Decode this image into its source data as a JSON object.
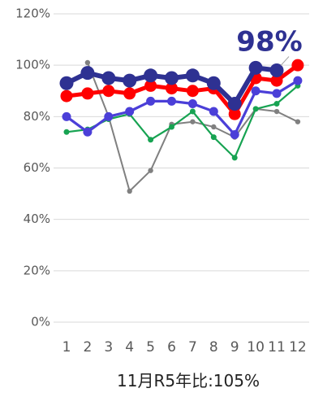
{
  "chart_data": {
    "type": "line",
    "categories": [
      "1",
      "2",
      "3",
      "4",
      "5",
      "6",
      "7",
      "8",
      "9",
      "10",
      "11",
      "12"
    ],
    "ylim": [
      0,
      120
    ],
    "y_ticks": [
      0,
      20,
      40,
      60,
      80,
      100,
      120
    ],
    "y_tick_labels": [
      "0%",
      "20%",
      "40%",
      "60%",
      "80%",
      "100%",
      "120%"
    ],
    "grid": true,
    "legend": false,
    "series": [
      {
        "color": "#808080",
        "values": [
          null,
          101,
          80,
          51,
          59,
          77,
          78,
          76,
          72,
          83,
          82,
          78
        ]
      },
      {
        "color": "#17a352",
        "values": [
          74,
          75,
          79,
          81,
          71,
          76,
          82,
          72,
          64,
          83,
          85,
          92
        ]
      },
      {
        "color": "#4b3fd8",
        "values": [
          80,
          74,
          80,
          82,
          86,
          86,
          85,
          82,
          73,
          90,
          89,
          94
        ]
      },
      {
        "color": "#ff0000",
        "values": [
          88,
          89,
          90,
          89,
          92,
          91,
          90,
          91,
          81,
          95,
          94,
          100
        ]
      },
      {
        "color": "#2e3192",
        "values": [
          93,
          97,
          95,
          94,
          96,
          95,
          96,
          93,
          85,
          99,
          98,
          null
        ]
      }
    ],
    "annotations": [
      {
        "text": "98%",
        "series_index": 4,
        "x_index": 10,
        "color": "#2e3192"
      }
    ]
  },
  "caption": "11月R5年比:105%"
}
